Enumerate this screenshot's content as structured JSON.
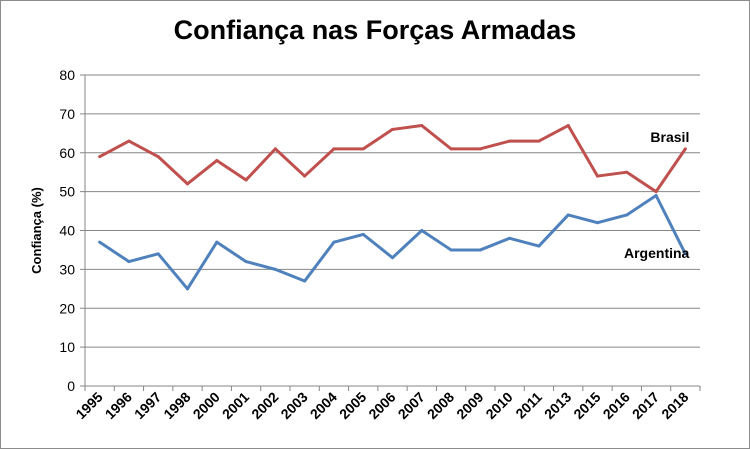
{
  "chart_data": {
    "type": "line",
    "title": "Confiança nas Forças Armadas",
    "xlabel": "",
    "ylabel": "Confiança (%)",
    "ylim": [
      0,
      80
    ],
    "yticks": [
      0,
      10,
      20,
      30,
      40,
      50,
      60,
      70,
      80
    ],
    "grid": true,
    "legend": "none",
    "categories": [
      "1995",
      "1996",
      "1997",
      "1998",
      "2000",
      "2001",
      "2002",
      "2003",
      "2004",
      "2005",
      "2006",
      "2007",
      "2008",
      "2009",
      "2010",
      "2011",
      "2013",
      "2015",
      "2016",
      "2017",
      "2018"
    ],
    "series": [
      {
        "name": "Brasil",
        "color": "#c0504d",
        "values": [
          59,
          63,
          59,
          52,
          58,
          53,
          61,
          54,
          61,
          61,
          66,
          67,
          61,
          61,
          63,
          63,
          67,
          54,
          55,
          50,
          61
        ]
      },
      {
        "name": "Argentina",
        "color": "#4f81bd",
        "values": [
          37,
          32,
          34,
          25,
          37,
          32,
          30,
          27,
          37,
          39,
          33,
          40,
          35,
          35,
          38,
          36,
          44,
          42,
          44,
          49,
          34
        ]
      }
    ]
  }
}
